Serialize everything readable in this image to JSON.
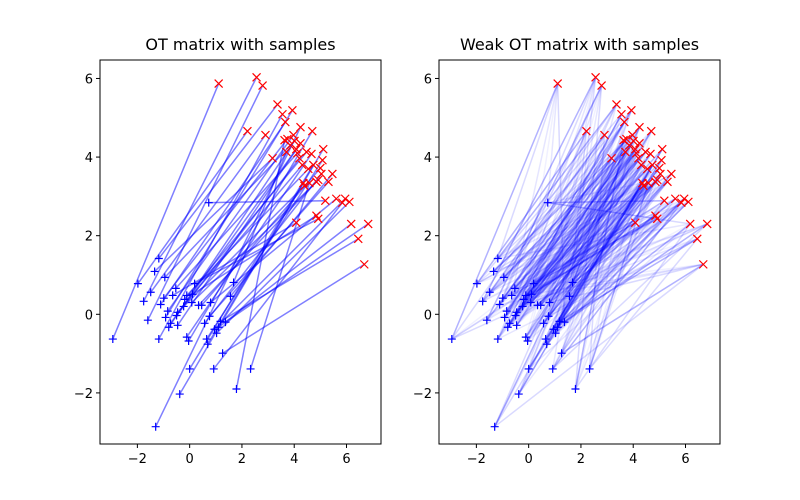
{
  "chart_data": [
    {
      "type": "scatter",
      "title": "OT matrix with samples",
      "xlim": [
        -3.43,
        7.32
      ],
      "ylim": [
        -3.3,
        6.47
      ],
      "xticks": [
        {
          "value": -2,
          "label": "−2"
        },
        0,
        2,
        4,
        6
      ],
      "yticks": [
        {
          "value": -2,
          "label": "−2"
        },
        0,
        2,
        4,
        6
      ],
      "sources": {
        "color": "#0000ff",
        "marker": "+",
        "x": [
          -2.94,
          -1.98,
          -1.76,
          -1.6,
          -1.49,
          -1.34,
          -1.18,
          -1.18,
          -1.11,
          -0.99,
          -0.95,
          -0.92,
          -0.84,
          -0.8,
          -0.73,
          -0.65,
          -0.53,
          -0.5,
          -0.46,
          -0.46,
          -0.38,
          -0.23,
          -0.19,
          -0.11,
          -0.11,
          -0.04,
          0.0,
          0.08,
          0.11,
          0.19,
          0.34,
          0.46,
          0.57,
          0.65,
          0.69,
          0.73,
          0.76,
          0.8,
          0.92,
          0.95,
          1.03,
          1.11,
          1.18,
          1.26,
          1.37,
          1.56,
          1.68,
          1.79,
          2.33,
          -1.3
        ],
        "y": [
          -0.63,
          0.78,
          0.33,
          -0.15,
          0.56,
          1.09,
          1.42,
          -0.63,
          0.25,
          0.41,
          0.94,
          -0.08,
          0.08,
          -0.33,
          -0.23,
          0.48,
          0.66,
          -0.03,
          -0.28,
          0.05,
          -2.03,
          0.2,
          0.38,
          0.48,
          -0.58,
          -0.68,
          -1.39,
          0.3,
          0.51,
          0.78,
          0.23,
          0.23,
          -0.23,
          -0.63,
          -0.76,
          2.84,
          -0.05,
          0.3,
          -1.39,
          -0.38,
          -0.48,
          -0.33,
          -0.18,
          -0.99,
          -0.2,
          0.46,
          0.81,
          -1.9,
          -1.39,
          -2.86
        ]
      },
      "targets": {
        "color": "#ff0000",
        "marker": "x",
        "x": [
          1.11,
          2.21,
          2.56,
          2.79,
          2.9,
          3.17,
          3.36,
          3.55,
          3.66,
          3.74,
          3.85,
          3.93,
          3.97,
          4.01,
          4.08,
          4.08,
          4.12,
          4.2,
          4.24,
          4.31,
          4.35,
          4.39,
          4.47,
          4.54,
          4.66,
          4.69,
          4.73,
          4.85,
          4.85,
          4.92,
          4.92,
          5.0,
          5.04,
          5.08,
          5.11,
          5.19,
          5.31,
          5.61,
          5.84,
          5.95,
          6.11,
          6.18,
          6.45,
          6.68,
          6.83,
          5.46,
          3.7,
          3.63,
          4.58,
          4.24
        ],
        "y": [
          5.87,
          4.66,
          6.03,
          5.82,
          4.56,
          3.97,
          5.34,
          5.09,
          4.89,
          4.46,
          4.3,
          5.19,
          4.56,
          4.41,
          4.2,
          2.33,
          4.1,
          3.97,
          4.35,
          3.8,
          3.34,
          3.27,
          4.13,
          3.7,
          4.08,
          4.66,
          3.8,
          3.37,
          2.51,
          2.43,
          3.42,
          3.72,
          3.57,
          3.92,
          4.2,
          2.89,
          3.37,
          2.94,
          2.84,
          2.94,
          2.86,
          2.3,
          1.92,
          1.27,
          2.3,
          3.57,
          4.13,
          4.43,
          3.34,
          4.76
        ]
      },
      "plan": {
        "color": "#0000ff",
        "offsets": [
          0
        ],
        "weights": [
          0.5
        ]
      }
    },
    {
      "type": "scatter",
      "title": "Weak OT matrix with samples",
      "xlim": [
        -3.43,
        7.32
      ],
      "ylim": [
        -3.3,
        6.47
      ],
      "xticks": [
        {
          "value": -2,
          "label": "−2"
        },
        0,
        2,
        4,
        6
      ],
      "yticks": [
        {
          "value": -2,
          "label": "−2"
        },
        0,
        2,
        4,
        6
      ],
      "sources": {
        "color": "#0000ff",
        "marker": "+",
        "x": [
          -2.94,
          -1.98,
          -1.76,
          -1.6,
          -1.49,
          -1.34,
          -1.18,
          -1.18,
          -1.11,
          -0.99,
          -0.95,
          -0.92,
          -0.84,
          -0.8,
          -0.73,
          -0.65,
          -0.53,
          -0.5,
          -0.46,
          -0.46,
          -0.38,
          -0.23,
          -0.19,
          -0.11,
          -0.11,
          -0.04,
          0.0,
          0.08,
          0.11,
          0.19,
          0.34,
          0.46,
          0.57,
          0.65,
          0.69,
          0.73,
          0.76,
          0.8,
          0.92,
          0.95,
          1.03,
          1.11,
          1.18,
          1.26,
          1.37,
          1.56,
          1.68,
          1.79,
          2.33,
          -1.3
        ],
        "y": [
          -0.63,
          0.78,
          0.33,
          -0.15,
          0.56,
          1.09,
          1.42,
          -0.63,
          0.25,
          0.41,
          0.94,
          -0.08,
          0.08,
          -0.33,
          -0.23,
          0.48,
          0.66,
          -0.03,
          -0.28,
          0.05,
          -2.03,
          0.2,
          0.38,
          0.48,
          -0.58,
          -0.68,
          -1.39,
          0.3,
          0.51,
          0.78,
          0.23,
          0.23,
          -0.23,
          -0.63,
          -0.76,
          2.84,
          -0.05,
          0.3,
          -1.39,
          -0.38,
          -0.48,
          -0.33,
          -0.18,
          -0.99,
          -0.2,
          0.46,
          0.81,
          -1.9,
          -1.39,
          -2.86
        ]
      },
      "targets": {
        "color": "#ff0000",
        "marker": "x",
        "x": [
          1.11,
          2.21,
          2.56,
          2.79,
          2.9,
          3.17,
          3.36,
          3.55,
          3.66,
          3.74,
          3.85,
          3.93,
          3.97,
          4.01,
          4.08,
          4.08,
          4.12,
          4.2,
          4.24,
          4.31,
          4.35,
          4.39,
          4.47,
          4.54,
          4.66,
          4.69,
          4.73,
          4.85,
          4.85,
          4.92,
          4.92,
          5.0,
          5.04,
          5.08,
          5.11,
          5.19,
          5.31,
          5.61,
          5.84,
          5.95,
          6.11,
          6.18,
          6.45,
          6.68,
          6.83,
          5.46,
          3.7,
          3.63,
          4.58,
          4.24
        ],
        "y": [
          5.87,
          4.66,
          6.03,
          5.82,
          4.56,
          3.97,
          5.34,
          5.09,
          4.89,
          4.46,
          4.3,
          5.19,
          4.56,
          4.41,
          4.2,
          2.33,
          4.1,
          3.97,
          4.35,
          3.8,
          3.34,
          3.27,
          4.13,
          3.7,
          4.08,
          4.66,
          3.8,
          3.37,
          2.51,
          2.43,
          3.42,
          3.72,
          3.57,
          3.92,
          4.2,
          2.89,
          3.37,
          2.94,
          2.84,
          2.94,
          2.86,
          2.3,
          1.92,
          1.27,
          2.3,
          3.57,
          4.13,
          4.43,
          3.34,
          4.76
        ]
      },
      "plan": {
        "color": "#0000ff",
        "offsets": [
          0,
          6,
          -6,
          15,
          -15,
          27
        ],
        "weights": [
          0.3,
          0.15,
          0.15,
          0.1,
          0.1,
          0.06
        ]
      }
    }
  ]
}
